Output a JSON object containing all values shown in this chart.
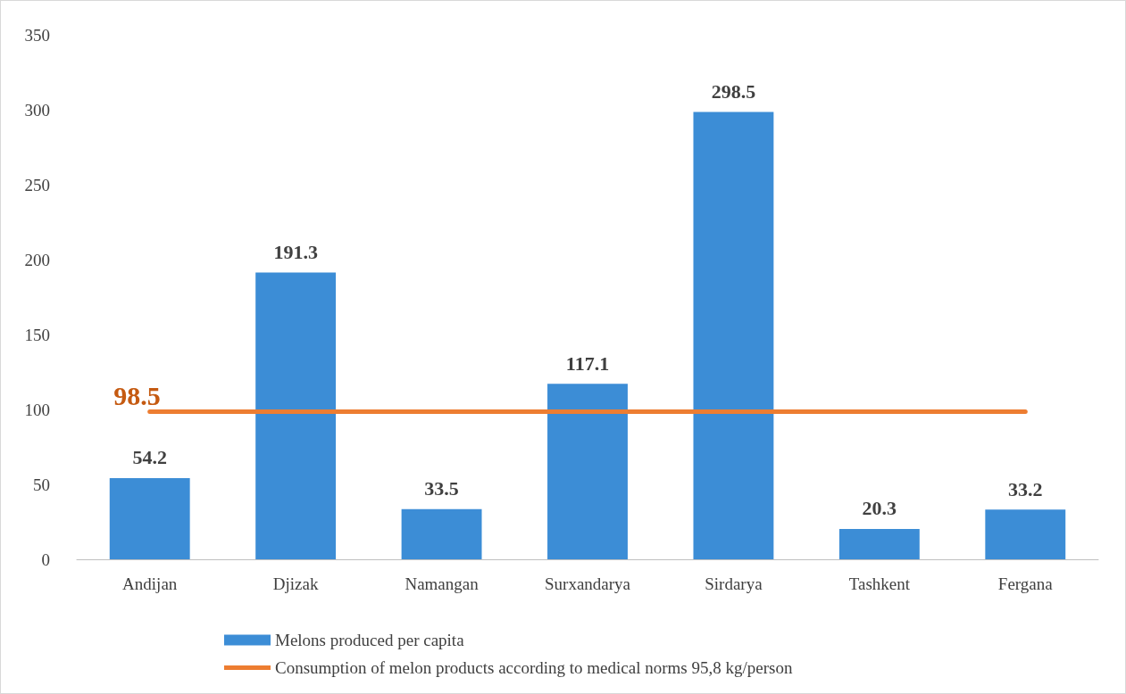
{
  "chart_data": {
    "type": "bar",
    "categories": [
      "Andijan",
      "Djizak",
      "Namangan",
      "Surxandarya",
      "Sirdarya",
      "Tashkent",
      "Fergana"
    ],
    "series": [
      {
        "name": "Melons produced per capita",
        "color": "#3c8dd6",
        "values": [
          54.2,
          191.3,
          33.5,
          117.1,
          298.5,
          20.3,
          33.2
        ],
        "value_labels": [
          "54.2",
          "191.3",
          "33.5",
          "117.1",
          "298.5",
          "20.3",
          "33.2"
        ]
      },
      {
        "name": "Consumption of melon products according to medical norms 95,8 kg/person",
        "type": "line",
        "color": "#ed7d31",
        "values": [
          98.5,
          98.5,
          98.5,
          98.5,
          98.5,
          98.5,
          98.5
        ],
        "value_labels": [
          "98.5",
          null,
          null,
          null,
          null,
          null,
          null
        ]
      }
    ],
    "ylim": [
      0,
      350
    ],
    "yticks": [
      0,
      50,
      100,
      150,
      200,
      250,
      300,
      350
    ],
    "grid": false,
    "legend": "bottom",
    "marker": "none",
    "line_style": "solid"
  }
}
